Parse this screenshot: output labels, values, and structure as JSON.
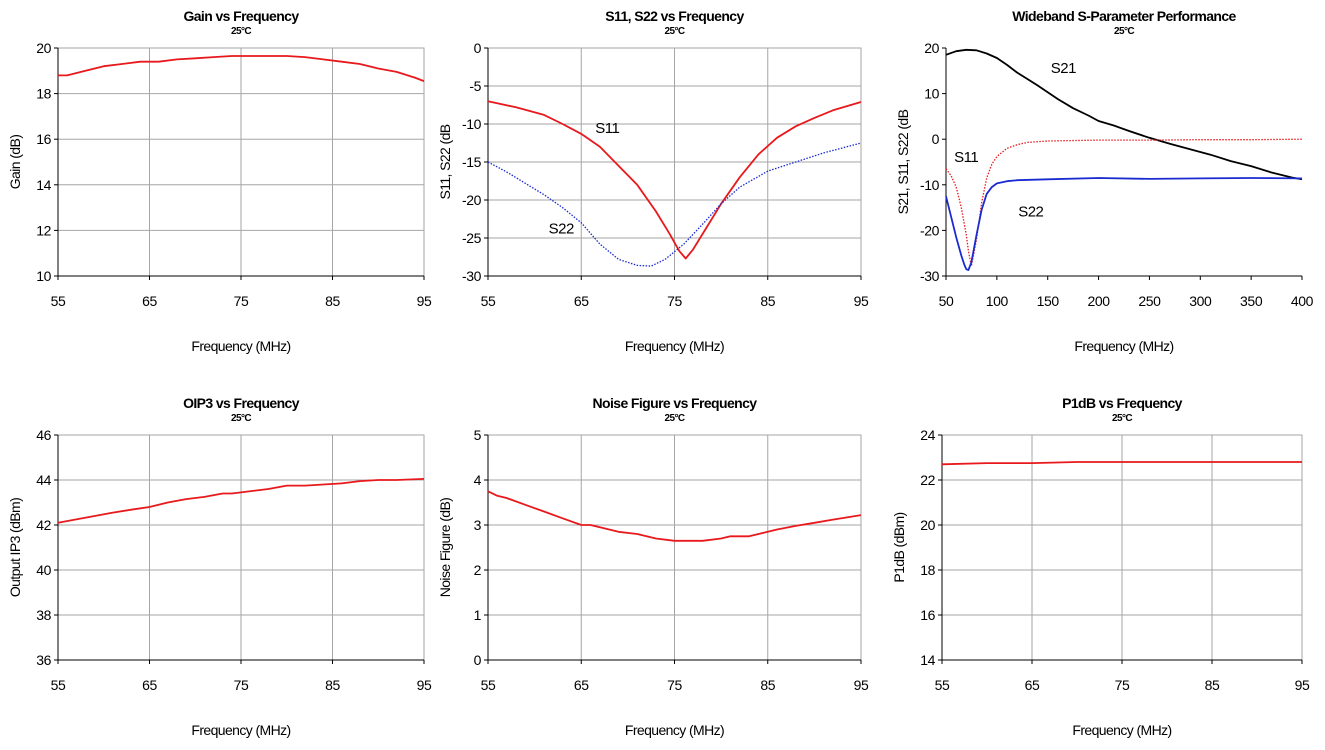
{
  "colors": {
    "red": "#e8191c",
    "blue": "#1a2bd0",
    "black": "#000000",
    "grid": "#a6a6a6"
  },
  "chart_data": [
    {
      "id": "gain",
      "type": "line",
      "title": "Gain vs Frequency",
      "subtitle": "25°C",
      "xlabel": "Frequency (MHz)",
      "ylabel": "Gain (dB)",
      "xlim": [
        55,
        95
      ],
      "ylim": [
        10,
        20
      ],
      "xticks": [
        55,
        65,
        75,
        85,
        95
      ],
      "yticks": [
        10,
        12,
        14,
        16,
        18,
        20
      ],
      "grid": true,
      "series": [
        {
          "color": "red",
          "dash": "solid",
          "x": [
            55,
            56,
            58,
            60,
            62,
            64,
            66,
            68,
            70,
            72,
            74,
            76,
            78,
            80,
            82,
            84,
            86,
            88,
            90,
            92,
            94,
            95
          ],
          "y": [
            18.8,
            18.8,
            19.0,
            19.2,
            19.3,
            19.4,
            19.4,
            19.5,
            19.55,
            19.6,
            19.65,
            19.65,
            19.65,
            19.65,
            19.6,
            19.5,
            19.4,
            19.3,
            19.1,
            18.95,
            18.7,
            18.55
          ]
        }
      ],
      "annotations": []
    },
    {
      "id": "s11s22",
      "type": "line",
      "title": "S11, S22 vs Frequency",
      "subtitle": "25°C",
      "xlabel": "Frequency (MHz)",
      "ylabel": "S11, S22 (dB",
      "xlim": [
        55,
        95
      ],
      "ylim": [
        -30,
        0
      ],
      "xticks": [
        55,
        65,
        75,
        85,
        95
      ],
      "yticks": [
        0,
        -5,
        -10,
        -15,
        -20,
        -25,
        -30
      ],
      "grid": true,
      "series": [
        {
          "color": "red",
          "dash": "solid",
          "x": [
            55,
            58,
            61,
            63,
            65,
            67,
            69,
            71,
            73,
            74.5,
            75.5,
            76.2,
            77,
            78.5,
            80,
            82,
            84,
            86,
            88,
            90,
            92,
            95
          ],
          "y": [
            -7,
            -7.8,
            -8.8,
            -10,
            -11.3,
            -13,
            -15.5,
            -18,
            -21.5,
            -24.5,
            -26.7,
            -27.7,
            -26.5,
            -23.5,
            -20.5,
            -17,
            -14,
            -11.8,
            -10.3,
            -9.2,
            -8.2,
            -7.1
          ]
        },
        {
          "color": "blue",
          "dash": "dotted",
          "x": [
            55,
            57,
            59,
            61,
            63,
            65,
            67,
            69,
            71,
            72.5,
            74,
            76,
            78,
            80,
            82,
            85,
            88,
            91,
            95
          ],
          "y": [
            -15,
            -16.3,
            -17.8,
            -19.3,
            -21,
            -23,
            -25.8,
            -27.8,
            -28.6,
            -28.7,
            -27.8,
            -25.8,
            -23.2,
            -20.5,
            -18.3,
            -16.2,
            -15,
            -13.8,
            -12.5
          ]
        }
      ],
      "annotations": [
        {
          "text": "S11",
          "x": 66.5,
          "y": -11.2
        },
        {
          "text": "S22",
          "x": 61.5,
          "y": -24.4
        }
      ]
    },
    {
      "id": "wideband",
      "type": "line",
      "title": "Wideband S-Parameter Performance",
      "subtitle": "25°C",
      "xlabel": "Frequency (MHz)",
      "ylabel": "S21, S11, S22 (dB",
      "xlim": [
        50,
        400
      ],
      "ylim": [
        -30,
        20
      ],
      "xticks": [
        50,
        100,
        150,
        200,
        250,
        300,
        350,
        400
      ],
      "yticks": [
        20,
        10,
        0,
        -10,
        -20,
        -30
      ],
      "grid": false,
      "series": [
        {
          "color": "black",
          "dash": "solid",
          "x": [
            50,
            60,
            70,
            80,
            90,
            100,
            110,
            120,
            130,
            140,
            150,
            160,
            175,
            190,
            200,
            215,
            230,
            250,
            270,
            290,
            310,
            330,
            350,
            370,
            390,
            400
          ],
          "y": [
            18.5,
            19.3,
            19.6,
            19.5,
            18.8,
            17.8,
            16.3,
            14.6,
            13.2,
            11.8,
            10.3,
            8.8,
            6.8,
            5.2,
            4,
            3,
            1.8,
            0.3,
            -1,
            -2.2,
            -3.4,
            -4.8,
            -5.9,
            -7.3,
            -8.4,
            -8.8
          ]
        },
        {
          "color": "red",
          "dash": "dotted",
          "x": [
            50,
            55,
            60,
            65,
            70,
            72,
            75,
            80,
            85,
            90,
            95,
            100,
            110,
            120,
            130,
            150,
            200,
            250,
            300,
            350,
            400
          ],
          "y": [
            -6.5,
            -8,
            -10.5,
            -15,
            -21,
            -24.5,
            -27.8,
            -22,
            -14,
            -8.5,
            -5.5,
            -3.8,
            -2,
            -1.2,
            -0.7,
            -0.4,
            -0.2,
            -0.2,
            -0.1,
            -0.1,
            0
          ]
        },
        {
          "color": "blue",
          "dash": "solid",
          "x": [
            50,
            55,
            60,
            65,
            68,
            70,
            72,
            75,
            80,
            85,
            90,
            95,
            100,
            110,
            120,
            150,
            200,
            250,
            300,
            350,
            400
          ],
          "y": [
            -12.5,
            -17,
            -21.5,
            -25.5,
            -27.5,
            -28.5,
            -28.7,
            -27,
            -21,
            -15.5,
            -12,
            -10.5,
            -9.7,
            -9.2,
            -9,
            -8.8,
            -8.5,
            -8.7,
            -8.6,
            -8.5,
            -8.6
          ]
        }
      ],
      "annotations": [
        {
          "text": "S21",
          "x": 153,
          "y": 14.5
        },
        {
          "text": "S11",
          "x": 58,
          "y": -5
        },
        {
          "text": "S22",
          "x": 121,
          "y": -17
        }
      ]
    },
    {
      "id": "oip3",
      "type": "line",
      "title": "OIP3 vs Frequency",
      "subtitle": "25°C",
      "xlabel": "Frequency (MHz)",
      "ylabel": "Output IP3 (dBm)",
      "xlim": [
        55,
        95
      ],
      "ylim": [
        36,
        46
      ],
      "xticks": [
        55,
        65,
        75,
        85,
        95
      ],
      "yticks": [
        36,
        38,
        40,
        42,
        44,
        46
      ],
      "grid": true,
      "series": [
        {
          "color": "red",
          "dash": "solid",
          "x": [
            55,
            57,
            59,
            61,
            63,
            65,
            67,
            69,
            71,
            73,
            74,
            75,
            77,
            78,
            80,
            82,
            84,
            86,
            88,
            90,
            92,
            95
          ],
          "y": [
            42.1,
            42.25,
            42.4,
            42.55,
            42.68,
            42.8,
            43.0,
            43.15,
            43.25,
            43.4,
            43.4,
            43.45,
            43.55,
            43.6,
            43.75,
            43.75,
            43.8,
            43.85,
            43.95,
            44.0,
            44.0,
            44.05
          ]
        }
      ],
      "annotations": []
    },
    {
      "id": "nf",
      "type": "line",
      "title": "Noise Figure vs Frequency",
      "subtitle": "25°C",
      "xlabel": "Frequency (MHz)",
      "ylabel": "Noise Figure (dB)",
      "xlim": [
        55,
        95
      ],
      "ylim": [
        0,
        5
      ],
      "xticks": [
        55,
        65,
        75,
        85,
        95
      ],
      "yticks": [
        0,
        1,
        2,
        3,
        4,
        5
      ],
      "grid": true,
      "series": [
        {
          "color": "red",
          "dash": "solid",
          "x": [
            55,
            56,
            57,
            59,
            61,
            63,
            65,
            66,
            67,
            69,
            71,
            73,
            75,
            77,
            78,
            80,
            81,
            83,
            85,
            86,
            88,
            90,
            92,
            95
          ],
          "y": [
            3.75,
            3.65,
            3.6,
            3.45,
            3.3,
            3.15,
            3.0,
            3.0,
            2.95,
            2.85,
            2.8,
            2.7,
            2.65,
            2.65,
            2.65,
            2.7,
            2.75,
            2.75,
            2.85,
            2.9,
            2.98,
            3.05,
            3.12,
            3.22
          ]
        }
      ],
      "annotations": []
    },
    {
      "id": "p1db",
      "type": "line",
      "title": "P1dB vs Frequency",
      "subtitle": "25°C",
      "xlabel": "Frequency (MHz)",
      "ylabel": "P1dB (dBm)",
      "xlim": [
        55,
        95
      ],
      "ylim": [
        14,
        24
      ],
      "xticks": [
        55,
        65,
        75,
        85,
        95
      ],
      "yticks": [
        14,
        16,
        18,
        20,
        22,
        24
      ],
      "grid": true,
      "series": [
        {
          "color": "red",
          "dash": "solid",
          "x": [
            55,
            60,
            65,
            70,
            75,
            80,
            85,
            90,
            95
          ],
          "y": [
            22.7,
            22.75,
            22.75,
            22.8,
            22.8,
            22.8,
            22.8,
            22.8,
            22.8
          ]
        }
      ],
      "annotations": []
    }
  ]
}
